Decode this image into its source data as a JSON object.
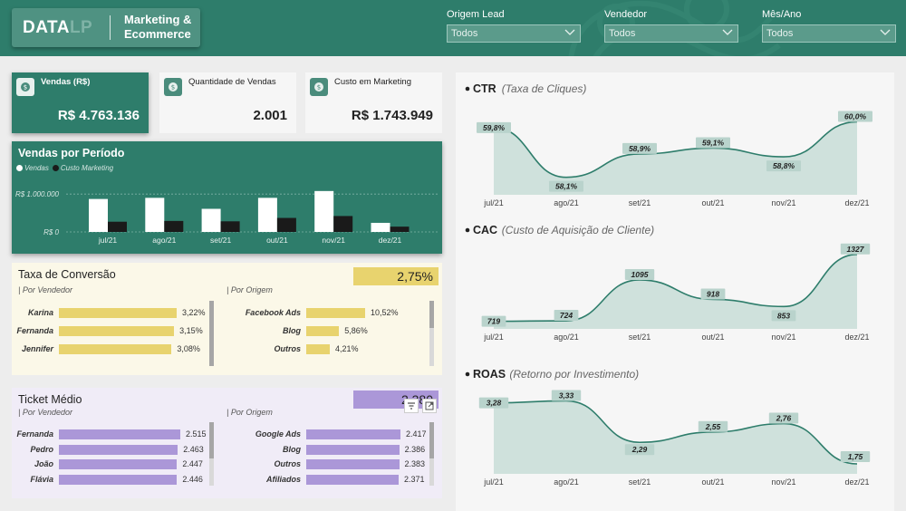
{
  "header": {
    "logo_main": "DATA",
    "logo_accent": "LP",
    "title": "Marketing & Ecommerce",
    "filters": [
      {
        "label": "Origem Lead",
        "value": "Todos"
      },
      {
        "label": "Vendedor",
        "value": "Todos"
      },
      {
        "label": "Mês/Ano",
        "value": "Todos"
      }
    ]
  },
  "kpis": [
    {
      "label": "Vendas (R$)",
      "value": "R$ 4.763.136",
      "icon": "dollar-icon"
    },
    {
      "label": "Quantidade de Vendas",
      "value": "2.001",
      "icon": "dollar-icon"
    },
    {
      "label": "Custo em Marketing",
      "value": "R$ 1.743.949",
      "icon": "dollar-icon"
    }
  ],
  "colors": {
    "primary": "#2e7d6b",
    "conversion": "#e8d36e",
    "ticket": "#ab97d8",
    "area": "#cfe1dc",
    "line": "#2e7d6b"
  },
  "chart_data": [
    {
      "id": "vendas-periodo",
      "type": "bar",
      "title": "Vendas por Período",
      "categories": [
        "jul/21",
        "ago/21",
        "set/21",
        "out/21",
        "nov/21",
        "dez/21"
      ],
      "series": [
        {
          "name": "Vendas",
          "values": [
            870000,
            900000,
            610000,
            900000,
            1080000,
            240000
          ]
        },
        {
          "name": "Custo Marketing",
          "values": [
            270000,
            290000,
            280000,
            370000,
            420000,
            140000
          ]
        }
      ],
      "yticks": [
        "R$ 0",
        "R$ 1.000.000"
      ],
      "ylim": [
        0,
        1100000
      ]
    },
    {
      "id": "ctr",
      "type": "area",
      "title": "CTR",
      "subtitle": "(Taxa de Cliques)",
      "categories": [
        "jul/21",
        "ago/21",
        "set/21",
        "out/21",
        "nov/21",
        "dez/21"
      ],
      "values": [
        59.8,
        58.1,
        58.9,
        59.1,
        58.8,
        60.0
      ],
      "labels": [
        "59,8%",
        "58,1%",
        "58,9%",
        "59,1%",
        "58,8%",
        "60,0%"
      ],
      "ylim": [
        57.5,
        60.2
      ]
    },
    {
      "id": "cac",
      "type": "area",
      "title": "CAC",
      "subtitle": "(Custo de Aquisição de Cliente)",
      "categories": [
        "jul/21",
        "ago/21",
        "set/21",
        "out/21",
        "nov/21",
        "dez/21"
      ],
      "values": [
        719,
        724,
        1095,
        918,
        853,
        1327
      ],
      "labels": [
        "719",
        "724",
        "1095",
        "918",
        "853",
        "1327"
      ],
      "ylim": [
        650,
        1350
      ]
    },
    {
      "id": "roas",
      "type": "area",
      "title": "ROAS",
      "subtitle": "(Retorno por Investimento)",
      "categories": [
        "jul/21",
        "ago/21",
        "set/21",
        "out/21",
        "nov/21",
        "dez/21"
      ],
      "values": [
        3.28,
        3.33,
        2.29,
        2.55,
        2.76,
        1.75
      ],
      "labels": [
        "3,28",
        "3,33",
        "2,29",
        "2,55",
        "2,76",
        "1,75"
      ],
      "ylim": [
        1.5,
        3.5
      ]
    }
  ],
  "conversao": {
    "title": "Taxa de Conversão",
    "total": "2,75%",
    "by_seller_label": "| Por Vendedor",
    "by_origin_label": "| Por Origem",
    "sellers": [
      {
        "name": "Karina",
        "value": 3.22,
        "label": "3,22%"
      },
      {
        "name": "Fernanda",
        "value": 3.15,
        "label": "3,15%"
      },
      {
        "name": "Jennifer",
        "value": 3.08,
        "label": "3,08%"
      }
    ],
    "origins": [
      {
        "name": "Facebook Ads",
        "value": 10.52,
        "label": "10,52%"
      },
      {
        "name": "Blog",
        "value": 5.86,
        "label": "5,86%"
      },
      {
        "name": "Outros",
        "value": 4.21,
        "label": "4,21%"
      }
    ]
  },
  "ticket": {
    "title": "Ticket Médio",
    "total": "2.380",
    "by_seller_label": "| Por Vendedor",
    "by_origin_label": "| Por Origem",
    "sellers": [
      {
        "name": "Fernanda",
        "value": 2515,
        "label": "2.515"
      },
      {
        "name": "Pedro",
        "value": 2463,
        "label": "2.463"
      },
      {
        "name": "João",
        "value": 2447,
        "label": "2.447"
      },
      {
        "name": "Flávia",
        "value": 2446,
        "label": "2.446"
      }
    ],
    "origins": [
      {
        "name": "Google Ads",
        "value": 2417,
        "label": "2.417"
      },
      {
        "name": "Blog",
        "value": 2386,
        "label": "2.386"
      },
      {
        "name": "Outros",
        "value": 2383,
        "label": "2.383"
      },
      {
        "name": "Afiliados",
        "value": 2371,
        "label": "2.371"
      }
    ]
  }
}
